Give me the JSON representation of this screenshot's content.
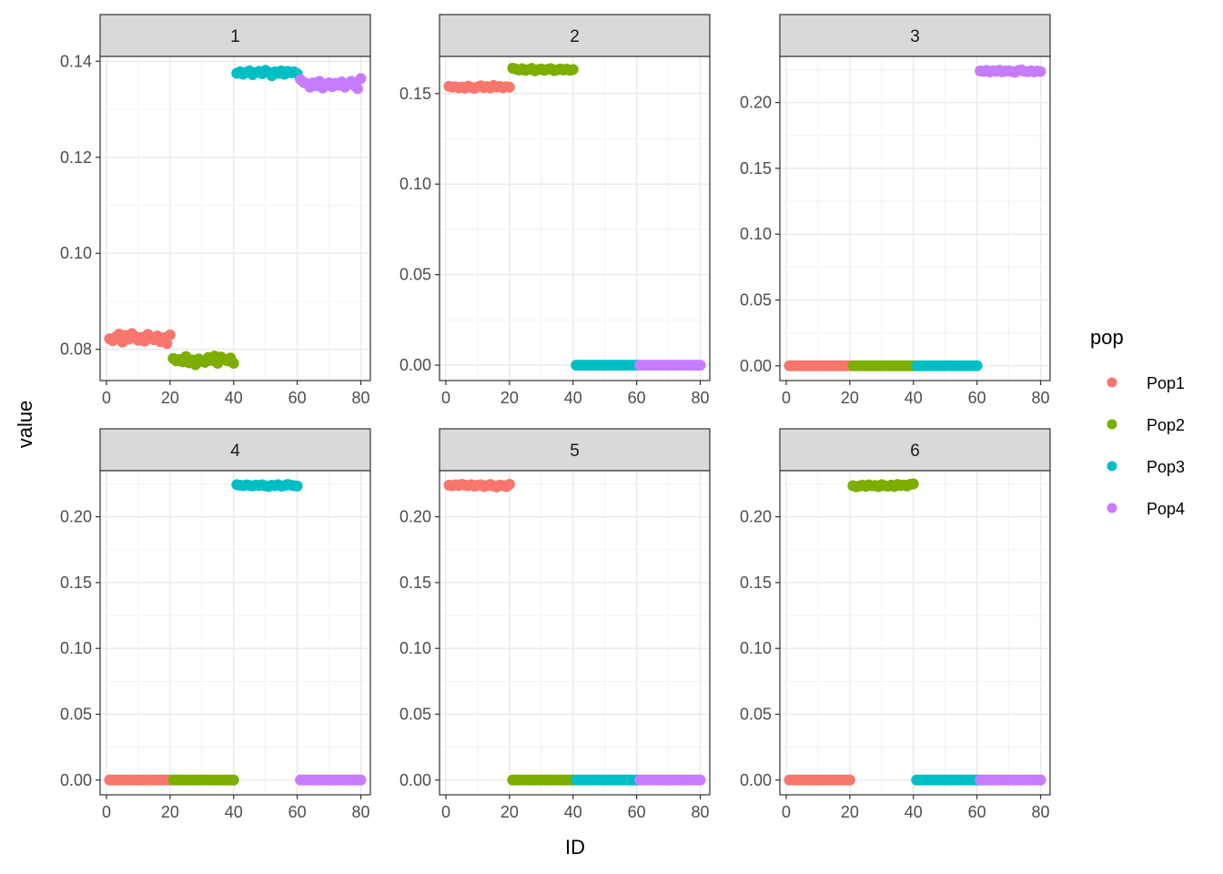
{
  "chart_data": {
    "type": "scatter",
    "faceted_by": "K",
    "x_label": "ID",
    "y_label": "value",
    "legend": {
      "title": "pop",
      "position": "right",
      "items": [
        {
          "label": "Pop1",
          "color": "#F8766D"
        },
        {
          "label": "Pop2",
          "color": "#7CAE00"
        },
        {
          "label": "Pop3",
          "color": "#00BFC4"
        },
        {
          "label": "Pop4",
          "color": "#C77CFF"
        }
      ]
    },
    "x_ticks": [
      "0",
      "20",
      "40",
      "60",
      "80"
    ],
    "x_range": [
      -2,
      83
    ],
    "panels": [
      {
        "label": "1",
        "ylim": [
          0.0735,
          0.141
        ],
        "y_ticks": [
          0.08,
          0.1,
          0.12,
          0.14
        ],
        "y_tick_labels": [
          "0.08",
          "0.10",
          "0.12",
          "0.14"
        ],
        "series": [
          {
            "pop": "Pop1",
            "x_range": [
              1,
              20
            ],
            "values": [
              0.0822,
              0.0818,
              0.0826,
              0.0832,
              0.0815,
              0.0829,
              0.0821,
              0.0833,
              0.0827,
              0.0819,
              0.0825,
              0.0817,
              0.0831,
              0.0823,
              0.082,
              0.0828,
              0.0816,
              0.0824,
              0.0812,
              0.083
            ]
          },
          {
            "pop": "Pop2",
            "x_range": [
              21,
              40
            ],
            "values": [
              0.0781,
              0.0776,
              0.0779,
              0.0774,
              0.0785,
              0.0772,
              0.0778,
              0.0768,
              0.078,
              0.0775,
              0.0773,
              0.0783,
              0.0777,
              0.0786,
              0.0771,
              0.0784,
              0.0779,
              0.0776,
              0.0782,
              0.0771
            ]
          },
          {
            "pop": "Pop3",
            "x_range": [
              41,
              60
            ],
            "values": [
              0.1375,
              0.1378,
              0.1373,
              0.1377,
              0.138,
              0.1372,
              0.1376,
              0.1379,
              0.1374,
              0.1381,
              0.1377,
              0.137,
              0.1378,
              0.1375,
              0.138,
              0.1373,
              0.1379,
              0.1376,
              0.1378,
              0.1374
            ]
          },
          {
            "pop": "Pop4",
            "x_range": [
              61,
              80
            ],
            "values": [
              0.1362,
              0.1356,
              0.1353,
              0.1346,
              0.1355,
              0.1349,
              0.1358,
              0.1344,
              0.1352,
              0.1355,
              0.1347,
              0.1354,
              0.135,
              0.1357,
              0.1346,
              0.1353,
              0.1358,
              0.1349,
              0.1343,
              0.1364
            ]
          }
        ]
      },
      {
        "label": "2",
        "ylim": [
          -0.0085,
          0.1705
        ],
        "y_ticks": [
          0,
          0.05,
          0.1,
          0.15
        ],
        "y_tick_labels": [
          "0.00",
          "0.05",
          "0.10",
          "0.15"
        ],
        "series": [
          {
            "pop": "Pop1",
            "x_range": [
              1,
              20
            ],
            "values": [
              0.154,
              0.1535,
              0.1538,
              0.1532,
              0.1536,
              0.153,
              0.1541,
              0.1534,
              0.1529,
              0.1537,
              0.1543,
              0.1533,
              0.1539,
              0.1531,
              0.1545,
              0.1536,
              0.154,
              0.1532,
              0.1538,
              0.1535
            ]
          },
          {
            "pop": "Pop2",
            "x_range": [
              21,
              40
            ],
            "values": [
              0.164,
              0.1635,
              0.163,
              0.1637,
              0.1628,
              0.1633,
              0.1639,
              0.1626,
              0.1632,
              0.1636,
              0.1629,
              0.1634,
              0.1638,
              0.1627,
              0.1631,
              0.1636,
              0.163,
              0.1635,
              0.1629,
              0.1633
            ]
          },
          {
            "pop": "Pop3",
            "x_range": [
              41,
              60
            ],
            "values": [
              0,
              0,
              0,
              0,
              0,
              0,
              0,
              0,
              0,
              0,
              0,
              0,
              0,
              0,
              0,
              0,
              0,
              0,
              0,
              0
            ]
          },
          {
            "pop": "Pop4",
            "x_range": [
              61,
              80
            ],
            "values": [
              0,
              0,
              0,
              0,
              0,
              0,
              0,
              0,
              0,
              0,
              0,
              0,
              0,
              0,
              0,
              0,
              0,
              0,
              0,
              0
            ]
          }
        ]
      },
      {
        "label": "3",
        "ylim": [
          -0.0112,
          0.235
        ],
        "y_ticks": [
          0,
          0.05,
          0.1,
          0.15,
          0.2
        ],
        "y_tick_labels": [
          "0.00",
          "0.05",
          "0.10",
          "0.15",
          "0.20"
        ],
        "series": [
          {
            "pop": "Pop1",
            "x_range": [
              1,
              20
            ],
            "values": [
              0,
              0,
              0,
              0,
              0,
              0,
              0,
              0,
              0,
              0,
              0,
              0,
              0,
              0,
              0,
              0,
              0,
              0,
              0,
              0
            ]
          },
          {
            "pop": "Pop2",
            "x_range": [
              21,
              40
            ],
            "values": [
              0,
              0,
              0,
              0,
              0,
              0,
              0,
              0,
              0,
              0,
              0,
              0,
              0,
              0,
              0,
              0,
              0,
              0,
              0,
              0
            ]
          },
          {
            "pop": "Pop3",
            "x_range": [
              41,
              60
            ],
            "values": [
              0,
              0,
              0,
              0,
              0,
              0,
              0,
              0,
              0,
              0,
              0,
              0,
              0,
              0,
              0,
              0,
              0,
              0,
              0,
              0
            ]
          },
          {
            "pop": "Pop4",
            "x_range": [
              61,
              80
            ],
            "values": [
              0.224,
              0.2236,
              0.2244,
              0.2232,
              0.2241,
              0.2238,
              0.2245,
              0.2233,
              0.2239,
              0.2242,
              0.2235,
              0.223,
              0.2243,
              0.2248,
              0.2237,
              0.2234,
              0.2241,
              0.2233,
              0.2239,
              0.2236
            ]
          }
        ]
      },
      {
        "label": "4",
        "ylim": [
          -0.0112,
          0.235
        ],
        "y_ticks": [
          0,
          0.05,
          0.1,
          0.15,
          0.2
        ],
        "y_tick_labels": [
          "0.00",
          "0.05",
          "0.10",
          "0.15",
          "0.20"
        ],
        "series": [
          {
            "pop": "Pop1",
            "x_range": [
              1,
              20
            ],
            "values": [
              0,
              0,
              0,
              0,
              0,
              0,
              0,
              0,
              0,
              0,
              0,
              0,
              0,
              0,
              0,
              0,
              0,
              0,
              0,
              0
            ]
          },
          {
            "pop": "Pop2",
            "x_range": [
              21,
              40
            ],
            "values": [
              0,
              0,
              0,
              0,
              0,
              0,
              0,
              0,
              0,
              0,
              0,
              0,
              0,
              0,
              0,
              0,
              0,
              0,
              0,
              0
            ]
          },
          {
            "pop": "Pop3",
            "x_range": [
              41,
              60
            ],
            "values": [
              0.2244,
              0.224,
              0.2236,
              0.2242,
              0.2238,
              0.2234,
              0.2241,
              0.2237,
              0.2243,
              0.2235,
              0.223,
              0.2239,
              0.2236,
              0.2244,
              0.2232,
              0.2238,
              0.2245,
              0.224,
              0.2236,
              0.2233
            ]
          },
          {
            "pop": "Pop4",
            "x_range": [
              61,
              80
            ],
            "values": [
              0,
              0,
              0,
              0,
              0,
              0,
              0,
              0,
              0,
              0,
              0,
              0,
              0,
              0,
              0,
              0,
              0,
              0,
              0,
              0
            ]
          }
        ]
      },
      {
        "label": "5",
        "ylim": [
          -0.0112,
          0.235
        ],
        "y_ticks": [
          0,
          0.05,
          0.1,
          0.15,
          0.2
        ],
        "y_tick_labels": [
          "0.00",
          "0.05",
          "0.10",
          "0.15",
          "0.20"
        ],
        "series": [
          {
            "pop": "Pop1",
            "x_range": [
              1,
              20
            ],
            "values": [
              0.224,
              0.2235,
              0.2243,
              0.2238,
              0.2246,
              0.2241,
              0.2236,
              0.2244,
              0.2232,
              0.2239,
              0.2243,
              0.2229,
              0.2237,
              0.2245,
              0.2233,
              0.2226,
              0.2241,
              0.2236,
              0.2229,
              0.2246
            ]
          },
          {
            "pop": "Pop2",
            "x_range": [
              21,
              40
            ],
            "values": [
              0,
              0,
              0,
              0,
              0,
              0,
              0,
              0,
              0,
              0,
              0,
              0,
              0,
              0,
              0,
              0,
              0,
              0,
              0,
              0
            ]
          },
          {
            "pop": "Pop3",
            "x_range": [
              41,
              60
            ],
            "values": [
              0,
              0,
              0,
              0,
              0,
              0,
              0,
              0,
              0,
              0,
              0,
              0,
              0,
              0,
              0,
              0,
              0,
              0,
              0,
              0
            ]
          },
          {
            "pop": "Pop4",
            "x_range": [
              61,
              80
            ],
            "values": [
              0,
              0,
              0,
              0,
              0,
              0,
              0,
              0,
              0,
              0,
              0,
              0,
              0,
              0,
              0,
              0,
              0,
              0,
              0,
              0
            ]
          }
        ]
      },
      {
        "label": "6",
        "ylim": [
          -0.0112,
          0.235
        ],
        "y_ticks": [
          0,
          0.05,
          0.1,
          0.15,
          0.2
        ],
        "y_tick_labels": [
          "0.00",
          "0.05",
          "0.10",
          "0.15",
          "0.20"
        ],
        "series": [
          {
            "pop": "Pop1",
            "x_range": [
              1,
              20
            ],
            "values": [
              0,
              0,
              0,
              0,
              0,
              0,
              0,
              0,
              0,
              0,
              0,
              0,
              0,
              0,
              0,
              0,
              0,
              0,
              0,
              0
            ]
          },
          {
            "pop": "Pop2",
            "x_range": [
              21,
              40
            ],
            "values": [
              0.2236,
              0.2228,
              0.2233,
              0.224,
              0.2231,
              0.2242,
              0.2235,
              0.2238,
              0.2229,
              0.2244,
              0.2236,
              0.2232,
              0.224,
              0.223,
              0.2245,
              0.2237,
              0.2241,
              0.2234,
              0.2246,
              0.225
            ]
          },
          {
            "pop": "Pop3",
            "x_range": [
              41,
              60
            ],
            "values": [
              0,
              0,
              0,
              0,
              0,
              0,
              0,
              0,
              0,
              0,
              0,
              0,
              0,
              0,
              0,
              0,
              0,
              0,
              0,
              0
            ]
          },
          {
            "pop": "Pop4",
            "x_range": [
              61,
              80
            ],
            "values": [
              0,
              0,
              0,
              0,
              0,
              0,
              0,
              0,
              0,
              0,
              0,
              0,
              0,
              0,
              0,
              0,
              0,
              0,
              0,
              0
            ]
          }
        ]
      }
    ]
  }
}
